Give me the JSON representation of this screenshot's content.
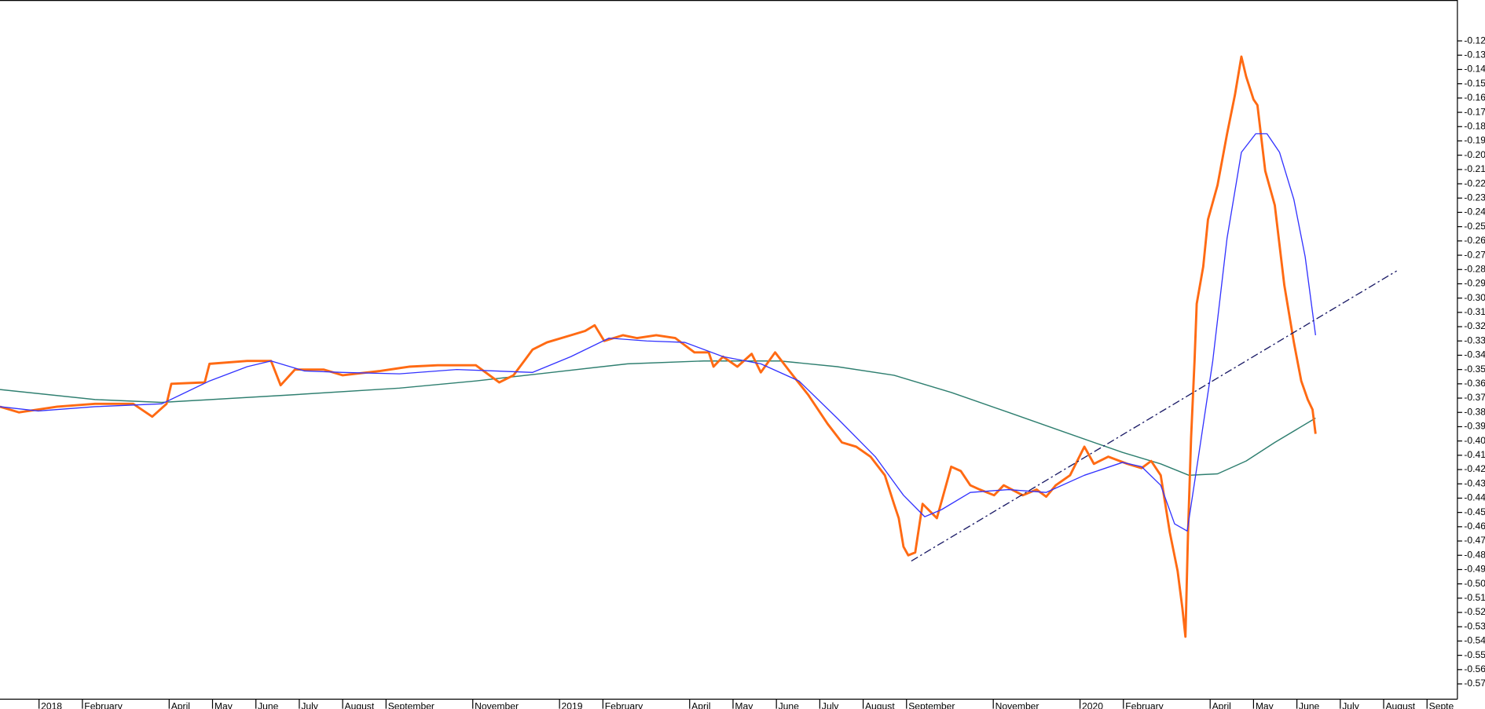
{
  "chart_data": {
    "type": "line",
    "xlim": [
      -0.9,
      32.7
    ],
    "xticks": [
      {
        "value": 0,
        "label": "2018"
      },
      {
        "value": 1,
        "label": "February"
      },
      {
        "value": 3,
        "label": "April"
      },
      {
        "value": 4,
        "label": "May"
      },
      {
        "value": 5,
        "label": "June"
      },
      {
        "value": 6,
        "label": "July"
      },
      {
        "value": 7,
        "label": "August"
      },
      {
        "value": 8,
        "label": "September"
      },
      {
        "value": 10,
        "label": "November"
      },
      {
        "value": 12,
        "label": "2019"
      },
      {
        "value": 13,
        "label": "February"
      },
      {
        "value": 15,
        "label": "April"
      },
      {
        "value": 16,
        "label": "May"
      },
      {
        "value": 17,
        "label": "June"
      },
      {
        "value": 18,
        "label": "July"
      },
      {
        "value": 19,
        "label": "August"
      },
      {
        "value": 20,
        "label": "September"
      },
      {
        "value": 22,
        "label": "November"
      },
      {
        "value": 24,
        "label": "2020"
      },
      {
        "value": 25,
        "label": "February"
      },
      {
        "value": 27,
        "label": "April"
      },
      {
        "value": 28,
        "label": "May"
      },
      {
        "value": 29,
        "label": "June"
      },
      {
        "value": 30,
        "label": "July"
      },
      {
        "value": 31,
        "label": "August"
      },
      {
        "value": 32,
        "label": "Septe"
      }
    ],
    "ylim": [
      -0.5807,
      -0.0914
    ],
    "yticks": [
      -0.12,
      -0.13,
      -0.14,
      -0.15,
      -0.16,
      -0.17,
      -0.18,
      -0.19,
      {
        "value": -0.2,
        "label": "-0.20"
      },
      -0.21,
      -0.22,
      -0.23,
      -0.24,
      -0.25,
      -0.26,
      -0.27,
      -0.28,
      -0.29,
      {
        "value": -0.3,
        "label": "-0.30"
      },
      -0.31,
      -0.32,
      -0.33,
      -0.34,
      -0.35,
      -0.36,
      -0.37,
      -0.38,
      -0.39,
      {
        "value": -0.4,
        "label": "-0.40"
      },
      -0.41,
      -0.42,
      -0.43,
      -0.44,
      -0.45,
      -0.46,
      -0.47,
      -0.48,
      -0.49,
      {
        "value": -0.5,
        "label": "-0.50"
      },
      -0.51,
      -0.52,
      -0.53,
      -0.54,
      -0.55,
      -0.56,
      -0.57
    ],
    "series": [
      {
        "color": "#2f7f70",
        "width": 1.2,
        "x": [
          -0.9,
          1.29,
          2.83,
          5.68,
          8.31,
          10.07,
          11.82,
          13.57,
          15.33,
          17.08,
          18.4,
          19.71,
          21.03,
          22.35,
          23.66,
          24.98,
          25.86,
          26.51,
          27.17,
          27.83,
          28.49,
          29.43
        ],
        "values": [
          -0.364,
          -0.371,
          -0.373,
          -0.368,
          -0.363,
          -0.358,
          -0.352,
          -0.346,
          -0.344,
          -0.344,
          -0.348,
          -0.354,
          -0.366,
          -0.38,
          -0.394,
          -0.408,
          -0.416,
          -0.424,
          -0.423,
          -0.414,
          -0.401,
          -0.384
        ]
      },
      {
        "color": "#ff6a13",
        "width": 2.4,
        "x": [
          -0.9,
          -0.46,
          0.42,
          1.29,
          2.17,
          2.61,
          2.94,
          3.05,
          3.82,
          3.93,
          4.8,
          5.35,
          5.57,
          5.9,
          6.56,
          7.0,
          7.87,
          8.53,
          9.19,
          10.07,
          10.61,
          10.94,
          11.21,
          11.38,
          11.71,
          12.26,
          12.59,
          12.81,
          13.03,
          13.46,
          13.79,
          14.23,
          14.67,
          15.11,
          15.44,
          15.55,
          15.77,
          16.1,
          16.43,
          16.64,
          16.97,
          17.3,
          17.74,
          18.18,
          18.51,
          18.84,
          19.17,
          19.5,
          19.71,
          19.82,
          19.93,
          20.04,
          20.2,
          20.37,
          20.7,
          21.03,
          21.25,
          21.47,
          21.69,
          22.02,
          22.24,
          22.68,
          23.0,
          23.22,
          23.44,
          23.77,
          24.1,
          24.32,
          24.65,
          25.09,
          25.42,
          25.64,
          25.86,
          26.07,
          26.25,
          26.36,
          26.43,
          26.49,
          26.56,
          26.64,
          26.69,
          26.84,
          26.95,
          27.17,
          27.39,
          27.57,
          27.72,
          27.83,
          28.0,
          28.09,
          28.27,
          28.49,
          28.71,
          28.93,
          29.1,
          29.25,
          29.36,
          29.43
        ],
        "values": [
          -0.376,
          -0.38,
          -0.376,
          -0.374,
          -0.374,
          -0.383,
          -0.374,
          -0.36,
          -0.359,
          -0.346,
          -0.344,
          -0.344,
          -0.361,
          -0.35,
          -0.35,
          -0.354,
          -0.351,
          -0.348,
          -0.347,
          -0.347,
          -0.359,
          -0.354,
          -0.343,
          -0.336,
          -0.331,
          -0.326,
          -0.323,
          -0.319,
          -0.33,
          -0.326,
          -0.328,
          -0.326,
          -0.328,
          -0.338,
          -0.338,
          -0.348,
          -0.341,
          -0.348,
          -0.339,
          -0.352,
          -0.338,
          -0.351,
          -0.368,
          -0.388,
          -0.401,
          -0.404,
          -0.411,
          -0.424,
          -0.444,
          -0.454,
          -0.474,
          -0.48,
          -0.478,
          -0.444,
          -0.454,
          -0.418,
          -0.421,
          -0.431,
          -0.434,
          -0.438,
          -0.431,
          -0.438,
          -0.434,
          -0.439,
          -0.431,
          -0.424,
          -0.404,
          -0.416,
          -0.411,
          -0.416,
          -0.419,
          -0.414,
          -0.424,
          -0.464,
          -0.491,
          -0.517,
          -0.537,
          -0.464,
          -0.398,
          -0.344,
          -0.304,
          -0.278,
          -0.245,
          -0.221,
          -0.185,
          -0.158,
          -0.131,
          -0.145,
          -0.161,
          -0.165,
          -0.211,
          -0.235,
          -0.291,
          -0.331,
          -0.358,
          -0.371,
          -0.378,
          -0.395
        ]
      },
      {
        "color": "#3333ff",
        "width": 1.1,
        "x": [
          -0.9,
          -0.02,
          1.29,
          2.83,
          3.93,
          4.8,
          5.35,
          6.12,
          7.0,
          8.31,
          9.63,
          10.5,
          11.38,
          12.26,
          13.14,
          14.01,
          14.89,
          15.77,
          16.64,
          17.52,
          18.4,
          19.28,
          19.93,
          20.42,
          20.81,
          21.47,
          22.35,
          23.22,
          24.1,
          24.98,
          25.42,
          25.86,
          26.18,
          26.47,
          26.73,
          27.06,
          27.39,
          27.72,
          28.05,
          28.31,
          28.6,
          28.93,
          29.19,
          29.43
        ],
        "values": [
          -0.376,
          -0.379,
          -0.376,
          -0.374,
          -0.358,
          -0.348,
          -0.344,
          -0.351,
          -0.352,
          -0.353,
          -0.35,
          -0.351,
          -0.352,
          -0.341,
          -0.328,
          -0.33,
          -0.331,
          -0.341,
          -0.346,
          -0.358,
          -0.384,
          -0.411,
          -0.438,
          -0.453,
          -0.448,
          -0.436,
          -0.434,
          -0.436,
          -0.424,
          -0.415,
          -0.418,
          -0.431,
          -0.458,
          -0.463,
          -0.411,
          -0.344,
          -0.258,
          -0.198,
          -0.185,
          -0.185,
          -0.198,
          -0.231,
          -0.271,
          -0.326
        ]
      },
      {
        "color": "#1a1a66",
        "width": 1.1,
        "dashed": true,
        "x": [
          20.11,
          31.3
        ],
        "values": [
          -0.484,
          -0.281
        ]
      }
    ]
  }
}
